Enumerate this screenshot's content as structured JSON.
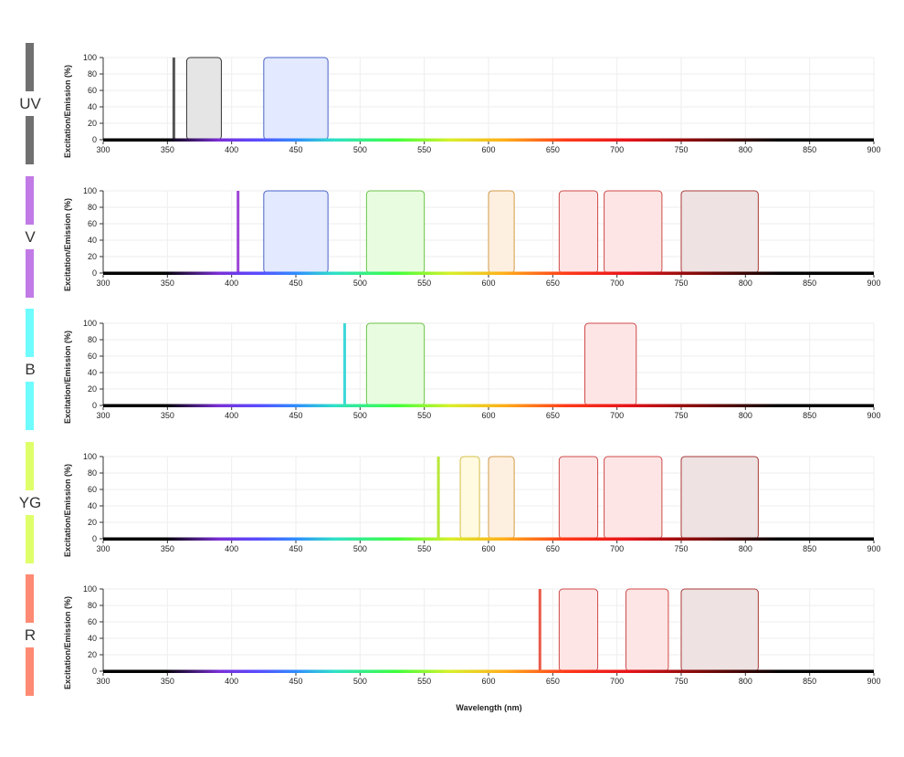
{
  "chart_data": {
    "type": "area",
    "xlabel": "Wavelength (nm)",
    "ylabel": "Excitation/Emission (%)",
    "xlim": [
      300,
      900
    ],
    "ylim": [
      0,
      100
    ],
    "xticks": [
      300,
      350,
      400,
      450,
      500,
      550,
      600,
      650,
      700,
      750,
      800,
      850,
      900
    ],
    "yticks": [
      0,
      20,
      40,
      60,
      80,
      100
    ],
    "grid": true,
    "panels": [
      {
        "laser": "UV",
        "laser_color": "#707070",
        "laser_line_nm": 355,
        "line_color": "#555555",
        "filters": [
          {
            "from": 365,
            "to": 392,
            "height": 100,
            "fill": "#e5e5e5",
            "stroke": "#333333"
          },
          {
            "from": 425,
            "to": 475,
            "height": 100,
            "fill": "#e3e9ff",
            "stroke": "#4a62c8"
          }
        ]
      },
      {
        "laser": "V",
        "laser_color": "#c27ae6",
        "laser_line_nm": 405,
        "line_color": "#9d44d6",
        "filters": [
          {
            "from": 425,
            "to": 475,
            "height": 100,
            "fill": "#e3e9ff",
            "stroke": "#4a62c8"
          },
          {
            "from": 505,
            "to": 550,
            "height": 100,
            "fill": "#e8fde0",
            "stroke": "#6cc24a"
          },
          {
            "from": 600,
            "to": 620,
            "height": 100,
            "fill": "#fdf0e0",
            "stroke": "#d49a4a"
          },
          {
            "from": 655,
            "to": 685,
            "height": 100,
            "fill": "#fde5e5",
            "stroke": "#cf4a4a"
          },
          {
            "from": 690,
            "to": 735,
            "height": 100,
            "fill": "#fde5e5",
            "stroke": "#cf4a4a"
          },
          {
            "from": 750,
            "to": 810,
            "height": 100,
            "fill": "#eee2e2",
            "stroke": "#a93a3a"
          }
        ]
      },
      {
        "laser": "B",
        "laser_color": "#6ffcff",
        "laser_line_nm": 488,
        "line_color": "#3ed8d8",
        "filters": [
          {
            "from": 505,
            "to": 550,
            "height": 100,
            "fill": "#e8fde0",
            "stroke": "#6cc24a"
          },
          {
            "from": 675,
            "to": 715,
            "height": 100,
            "fill": "#fde5e5",
            "stroke": "#cf4a4a"
          }
        ]
      },
      {
        "laser": "YG",
        "laser_color": "#dfff6a",
        "laser_line_nm": 561,
        "line_color": "#b8e83a",
        "filters": [
          {
            "from": 578,
            "to": 593,
            "height": 100,
            "fill": "#fffae0",
            "stroke": "#d4c04a"
          },
          {
            "from": 600,
            "to": 620,
            "height": 100,
            "fill": "#fdf0e0",
            "stroke": "#d49a4a"
          },
          {
            "from": 655,
            "to": 685,
            "height": 100,
            "fill": "#fde5e5",
            "stroke": "#cf4a4a"
          },
          {
            "from": 690,
            "to": 735,
            "height": 100,
            "fill": "#fde5e5",
            "stroke": "#cf4a4a"
          },
          {
            "from": 750,
            "to": 810,
            "height": 100,
            "fill": "#eee2e2",
            "stroke": "#a93a3a"
          }
        ]
      },
      {
        "laser": "R",
        "laser_color": "#ff8a73",
        "laser_line_nm": 640,
        "line_color": "#e85a48",
        "filters": [
          {
            "from": 655,
            "to": 685,
            "height": 100,
            "fill": "#fde5e5",
            "stroke": "#cf4a4a"
          },
          {
            "from": 707,
            "to": 740,
            "height": 100,
            "fill": "#fde5e5",
            "stroke": "#cf4a4a"
          },
          {
            "from": 750,
            "to": 810,
            "height": 100,
            "fill": "#eee2e2",
            "stroke": "#a93a3a"
          }
        ]
      }
    ]
  }
}
